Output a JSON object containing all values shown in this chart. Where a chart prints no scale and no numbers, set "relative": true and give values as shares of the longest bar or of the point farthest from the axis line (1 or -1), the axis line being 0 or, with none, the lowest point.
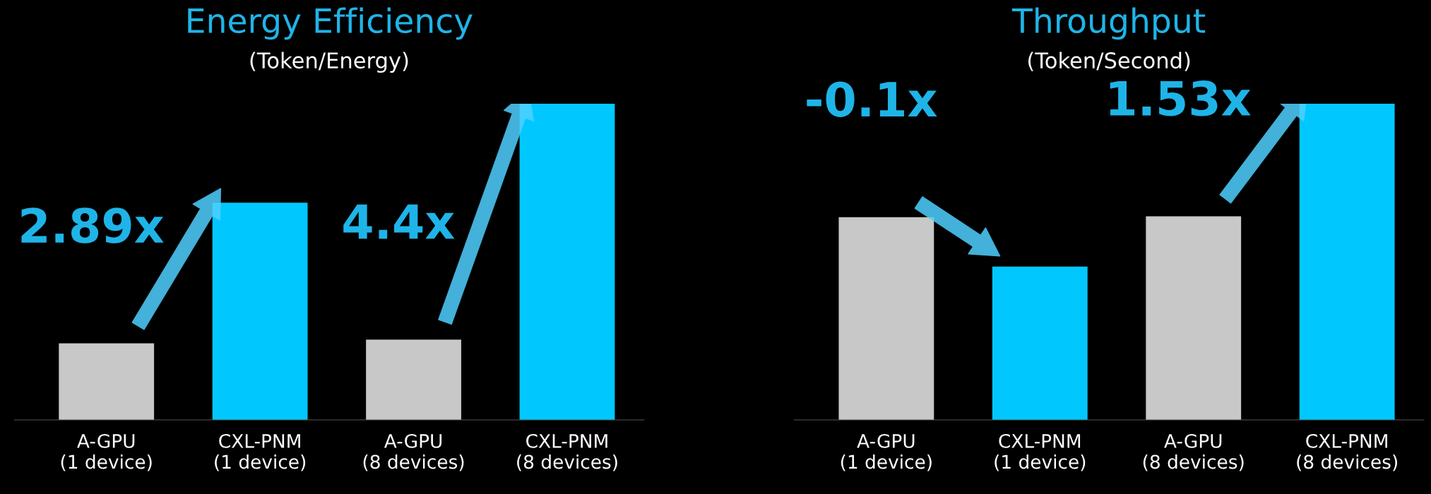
{
  "chart_data": [
    {
      "type": "bar",
      "title": "Energy Efficiency",
      "subtitle": "(Token/Energy)",
      "relative": true,
      "categories": [
        "A-GPU\n(1 device)",
        "CXL-PNM\n(1 device)",
        "A-GPU\n(8 devices)",
        "CXL-PNM\n(8 devices)"
      ],
      "values": [
        0.242,
        0.687,
        0.254,
        1.0
      ],
      "colors": [
        "#c8c8c8",
        "#00c8ff",
        "#c8c8c8",
        "#00c8ff"
      ],
      "annotations": [
        "2.89x",
        "4.4x"
      ]
    },
    {
      "type": "bar",
      "title": "Throughput",
      "subtitle": "(Token/Second)",
      "relative": true,
      "categories": [
        "A-GPU\n(1 device)",
        "CXL-PNM\n(1 device)",
        "A-GPU\n(8 devices)",
        "CXL-PNM\n(8 devices)"
      ],
      "values": [
        0.641,
        0.485,
        0.644,
        1.0
      ],
      "colors": [
        "#c8c8c8",
        "#00c8ff",
        "#c8c8c8",
        "#00c8ff"
      ],
      "annotations": [
        "-0.1x",
        "1.53x"
      ]
    }
  ]
}
